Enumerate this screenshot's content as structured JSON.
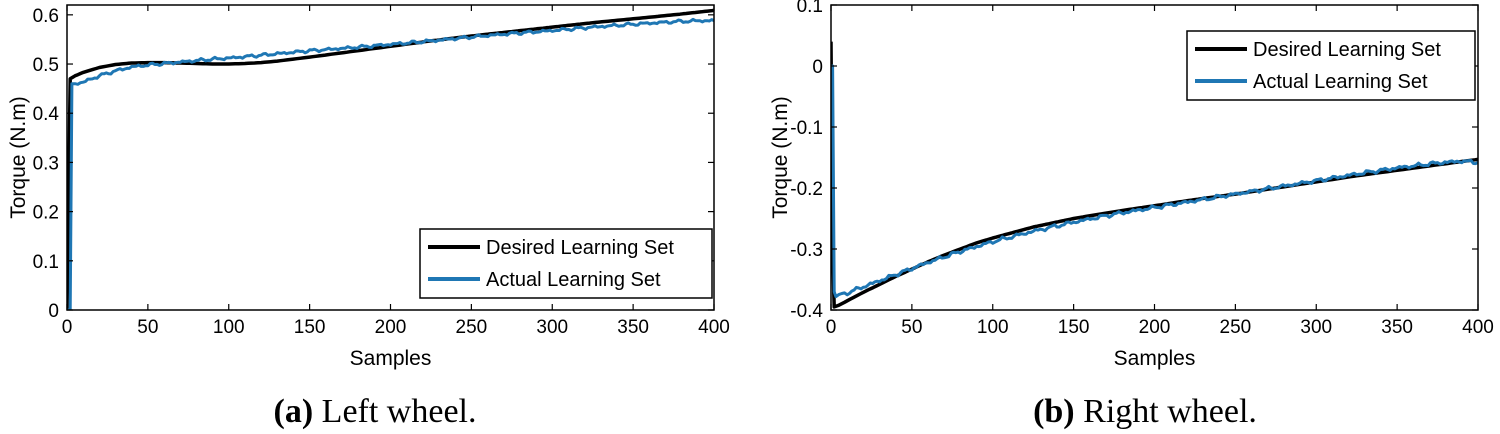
{
  "chart_data": [
    {
      "type": "line",
      "caption_tag": "(a)",
      "caption_text": " Left wheel.",
      "xlabel": "Samples",
      "ylabel": "Torque (N.m)",
      "xlim": [
        0,
        400
      ],
      "ylim": [
        0,
        0.62
      ],
      "xticks": [
        0,
        50,
        100,
        150,
        200,
        250,
        300,
        350,
        400
      ],
      "xtick_labels": [
        "0",
        "50",
        "100",
        "150",
        "200",
        "250",
        "300",
        "350",
        "400"
      ],
      "yticks": [
        0,
        0.1,
        0.2,
        0.3,
        0.4,
        0.5,
        0.6
      ],
      "ytick_labels": [
        "0",
        "0.1",
        "0.2",
        "0.3",
        "0.4",
        "0.5",
        "0.6"
      ],
      "grid": false,
      "legend_position": "bottom-right",
      "series": [
        {
          "name": "Desired Learning Set",
          "color": "#000000",
          "x": [
            0,
            2,
            5,
            10,
            20,
            30,
            40,
            50,
            60,
            70,
            80,
            90,
            100,
            110,
            120,
            130,
            140,
            150,
            175,
            200,
            225,
            250,
            275,
            300,
            325,
            350,
            375,
            400
          ],
          "y": [
            0.0,
            0.47,
            0.476,
            0.483,
            0.493,
            0.499,
            0.502,
            0.503,
            0.503,
            0.502,
            0.501,
            0.5,
            0.5,
            0.501,
            0.503,
            0.506,
            0.51,
            0.514,
            0.525,
            0.536,
            0.547,
            0.557,
            0.566,
            0.575,
            0.584,
            0.592,
            0.6,
            0.609
          ]
        },
        {
          "name": "Actual Learning Set",
          "color": "#1f77b4",
          "x": [
            0,
            2,
            3,
            5,
            10,
            20,
            30,
            40,
            50,
            60,
            70,
            80,
            90,
            100,
            110,
            120,
            130,
            140,
            150,
            175,
            200,
            225,
            250,
            275,
            300,
            325,
            350,
            375,
            390,
            400
          ],
          "y": [
            0.0,
            0.0,
            0.46,
            0.46,
            0.463,
            0.476,
            0.486,
            0.494,
            0.498,
            0.501,
            0.504,
            0.507,
            0.51,
            0.512,
            0.515,
            0.518,
            0.521,
            0.524,
            0.527,
            0.533,
            0.54,
            0.547,
            0.555,
            0.562,
            0.568,
            0.575,
            0.581,
            0.586,
            0.588,
            0.588
          ]
        }
      ]
    },
    {
      "type": "line",
      "caption_tag": "(b)",
      "caption_text": " Right wheel.",
      "xlabel": "Samples",
      "ylabel": "Torque (N.m)",
      "xlim": [
        0,
        400
      ],
      "ylim": [
        -0.4,
        0.1
      ],
      "xticks": [
        0,
        50,
        100,
        150,
        200,
        250,
        300,
        350,
        400
      ],
      "xtick_labels": [
        "0",
        "50",
        "100",
        "150",
        "200",
        "250",
        "300",
        "350",
        "400"
      ],
      "yticks": [
        -0.4,
        -0.3,
        -0.2,
        -0.1,
        0,
        0.1
      ],
      "ytick_labels": [
        "-0.4",
        "-0.3",
        "-0.2",
        "-0.1",
        "0",
        "0.1"
      ],
      "grid": false,
      "legend_position": "top-right",
      "series": [
        {
          "name": "Desired Learning Set",
          "color": "#000000",
          "x": [
            0,
            1,
            2,
            5,
            10,
            20,
            30,
            40,
            50,
            60,
            70,
            80,
            90,
            100,
            125,
            150,
            175,
            200,
            225,
            250,
            275,
            300,
            325,
            350,
            375,
            400
          ],
          "y": [
            0.04,
            -0.3,
            -0.395,
            -0.392,
            -0.385,
            -0.371,
            -0.358,
            -0.345,
            -0.333,
            -0.321,
            -0.31,
            -0.3,
            -0.29,
            -0.282,
            -0.264,
            -0.25,
            -0.239,
            -0.229,
            -0.219,
            -0.21,
            -0.2,
            -0.19,
            -0.18,
            -0.171,
            -0.162,
            -0.153
          ]
        },
        {
          "name": "Actual Learning Set",
          "color": "#1f77b4",
          "x": [
            0,
            1,
            2,
            3,
            5,
            10,
            20,
            30,
            40,
            50,
            60,
            70,
            80,
            90,
            100,
            125,
            150,
            175,
            200,
            225,
            250,
            275,
            300,
            325,
            350,
            375,
            390,
            400
          ],
          "y": [
            0.0,
            0.0,
            -0.37,
            -0.378,
            -0.376,
            -0.372,
            -0.362,
            -0.352,
            -0.342,
            -0.332,
            -0.322,
            -0.313,
            -0.304,
            -0.296,
            -0.288,
            -0.271,
            -0.256,
            -0.243,
            -0.232,
            -0.221,
            -0.21,
            -0.199,
            -0.188,
            -0.177,
            -0.167,
            -0.159,
            -0.156,
            -0.158
          ]
        }
      ]
    }
  ]
}
